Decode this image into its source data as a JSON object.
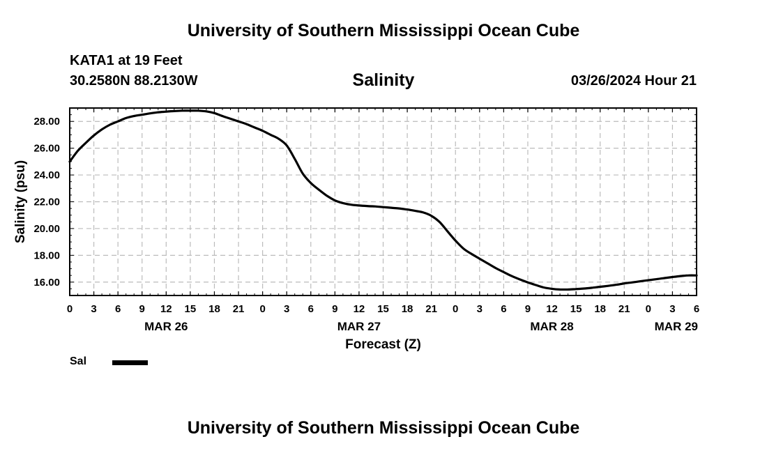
{
  "header": {
    "top_title": "University of Southern Mississippi Ocean Cube",
    "station": "KATA1 at 19 Feet",
    "coords": "30.2580N  88.2130W",
    "chart_title": "Salinity",
    "timestamp": "03/26/2024 Hour 21"
  },
  "footer": {
    "bottom_title": "University of Southern Mississippi Ocean Cube"
  },
  "legend": {
    "label": "Sal"
  },
  "colors": {
    "line": "#000000",
    "grid": "#bbbbbb",
    "axis": "#000000"
  },
  "chart_data": {
    "type": "line",
    "title": "Salinity",
    "xlabel": "Forecast (Z)",
    "ylabel": "Salinity (psu)",
    "xlim": [
      0,
      78
    ],
    "ylim": [
      15.0,
      29.0
    ],
    "yticks": [
      "16.00",
      "18.00",
      "20.00",
      "22.00",
      "24.00",
      "26.00",
      "28.00"
    ],
    "ytick_values": [
      16,
      18,
      20,
      22,
      24,
      26,
      28
    ],
    "xtick_hours": [
      0,
      3,
      6,
      9,
      12,
      15,
      18,
      21,
      24,
      27,
      30,
      33,
      36,
      39,
      42,
      45,
      48,
      51,
      54,
      57,
      60,
      63,
      66,
      69,
      72,
      75,
      78
    ],
    "xtick_labels": [
      "0",
      "3",
      "6",
      "9",
      "12",
      "15",
      "18",
      "21",
      "0",
      "3",
      "6",
      "9",
      "12",
      "15",
      "18",
      "21",
      "0",
      "3",
      "6",
      "9",
      "12",
      "15",
      "18",
      "21",
      "0",
      "3",
      "6"
    ],
    "date_labels": [
      {
        "label": "MAR 26",
        "hour": 12
      },
      {
        "label": "MAR 27",
        "hour": 36
      },
      {
        "label": "MAR 28",
        "hour": 60
      },
      {
        "label": "MAR 29",
        "hour": 78
      }
    ],
    "grid": true,
    "legend": "bottom-left",
    "series": [
      {
        "name": "Sal",
        "x": [
          0,
          1,
          2,
          3,
          4,
          5,
          6,
          7,
          8,
          9,
          10,
          11,
          12,
          13,
          14,
          15,
          16,
          17,
          18,
          19,
          20,
          21,
          22,
          23,
          24,
          25,
          26,
          27,
          28,
          29,
          30,
          31,
          32,
          33,
          34,
          35,
          36,
          37,
          38,
          39,
          40,
          41,
          42,
          43,
          44,
          45,
          46,
          47,
          48,
          49,
          50,
          51,
          52,
          53,
          54,
          55,
          56,
          57,
          58,
          59,
          60,
          61,
          62,
          63,
          64,
          65,
          66,
          67,
          68,
          69,
          70,
          71,
          72,
          73,
          74,
          75,
          76,
          77,
          78
        ],
        "values": [
          25.0,
          25.8,
          26.4,
          26.95,
          27.4,
          27.75,
          28.0,
          28.25,
          28.4,
          28.5,
          28.6,
          28.68,
          28.73,
          28.77,
          28.8,
          28.8,
          28.8,
          28.75,
          28.62,
          28.4,
          28.2,
          28.0,
          27.8,
          27.55,
          27.3,
          27.0,
          26.7,
          26.2,
          25.2,
          24.1,
          23.4,
          22.9,
          22.45,
          22.1,
          21.9,
          21.78,
          21.72,
          21.68,
          21.65,
          21.6,
          21.55,
          21.5,
          21.42,
          21.32,
          21.2,
          20.95,
          20.5,
          19.8,
          19.1,
          18.5,
          18.1,
          17.75,
          17.4,
          17.05,
          16.75,
          16.45,
          16.2,
          15.98,
          15.78,
          15.6,
          15.5,
          15.45,
          15.45,
          15.48,
          15.52,
          15.58,
          15.65,
          15.72,
          15.8,
          15.9,
          15.98,
          16.06,
          16.14,
          16.22,
          16.3,
          16.38,
          16.45,
          16.5,
          16.5
        ]
      }
    ]
  }
}
